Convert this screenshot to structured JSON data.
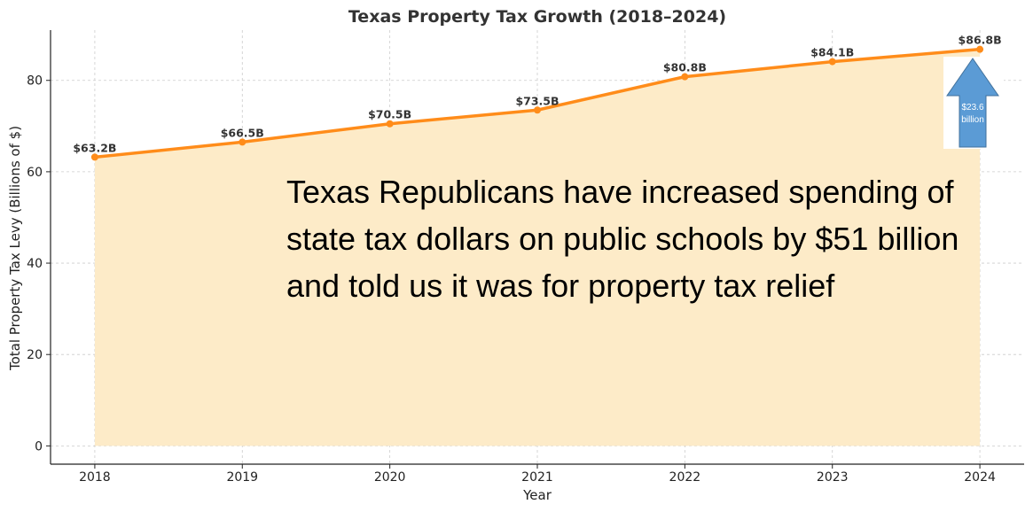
{
  "colors": {
    "line": "#ff8c1a",
    "fill": "#fdebc8",
    "arrow_fill": "#5b9bd5",
    "arrow_stroke": "#41719c",
    "grid": "#cccccc",
    "axis": "#222222"
  },
  "overlay": {
    "text": "Texas Republicans have increased spending of state tax dollars on public schools by $51 billion and told us it was for property tax relief"
  },
  "callout": {
    "line1": "$23.6",
    "line2": "billion",
    "icon": "up-arrow-icon"
  },
  "chart_data": {
    "type": "area",
    "title": "Texas Property Tax Growth (2018–2024)",
    "xlabel": "Year",
    "ylabel": "Total Property Tax Levy (Billions of $)",
    "categories": [
      "2018",
      "2019",
      "2020",
      "2021",
      "2022",
      "2023",
      "2024"
    ],
    "values": [
      63.2,
      66.5,
      70.5,
      73.5,
      80.8,
      84.1,
      86.8
    ],
    "data_labels": [
      "$63.2B",
      "$66.5B",
      "$70.5B",
      "$73.5B",
      "$80.8B",
      "$84.1B",
      "$86.8B"
    ],
    "yticks": [
      0,
      20,
      40,
      60,
      80
    ],
    "ylim": [
      -4,
      91
    ],
    "xlim": [
      2017.7,
      2024.3
    ],
    "grid": true,
    "legend": "none"
  }
}
